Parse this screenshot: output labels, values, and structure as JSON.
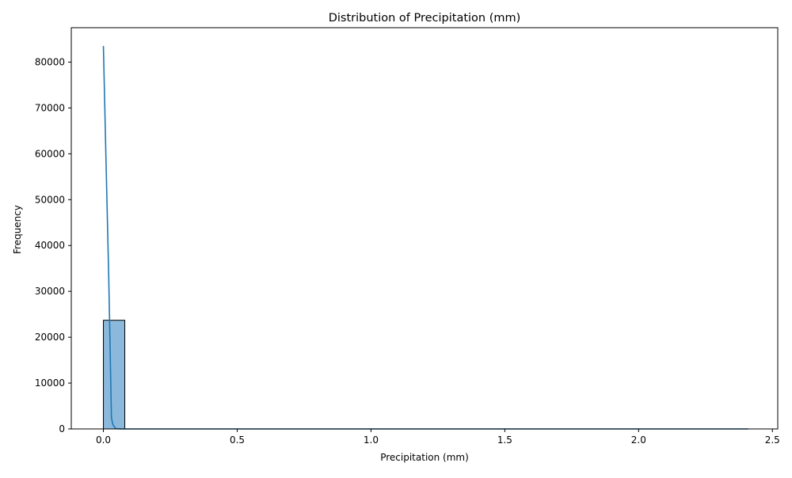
{
  "chart_data": {
    "type": "bar",
    "title": "Distribution of Precipitation (mm)",
    "xlabel": "Precipitation (mm)",
    "ylabel": "Frequency",
    "xlim": [
      -0.12,
      2.52
    ],
    "ylim": [
      0,
      87500
    ],
    "x_ticks": [
      0.0,
      0.5,
      1.0,
      1.5,
      2.0,
      2.5
    ],
    "x_tick_labels": [
      "0.0",
      "0.5",
      "1.0",
      "1.5",
      "2.0",
      "2.5"
    ],
    "y_ticks": [
      0,
      10000,
      20000,
      30000,
      40000,
      50000,
      60000,
      70000,
      80000
    ],
    "y_tick_labels": [
      "0",
      "10000",
      "20000",
      "30000",
      "40000",
      "50000",
      "60000",
      "70000",
      "80000"
    ],
    "grid": false,
    "legend": "none",
    "bars": [
      {
        "x0": 0.0,
        "x1": 0.08,
        "value": 23700
      }
    ],
    "kde_curve": {
      "x": [
        0.0,
        0.01,
        0.02,
        0.025,
        0.03,
        0.035,
        0.045,
        0.06,
        0.08,
        0.2,
        0.5,
        1.0,
        1.5,
        2.0,
        2.41
      ],
      "y": [
        83500,
        58000,
        33000,
        18000,
        2500,
        1000,
        100,
        0,
        0,
        0,
        0,
        0,
        0,
        0,
        0
      ]
    },
    "colors": {
      "bar_fill": "#8cb9db",
      "bar_edge": "#000000",
      "line": "#1f77b4",
      "axis": "#000000"
    }
  }
}
